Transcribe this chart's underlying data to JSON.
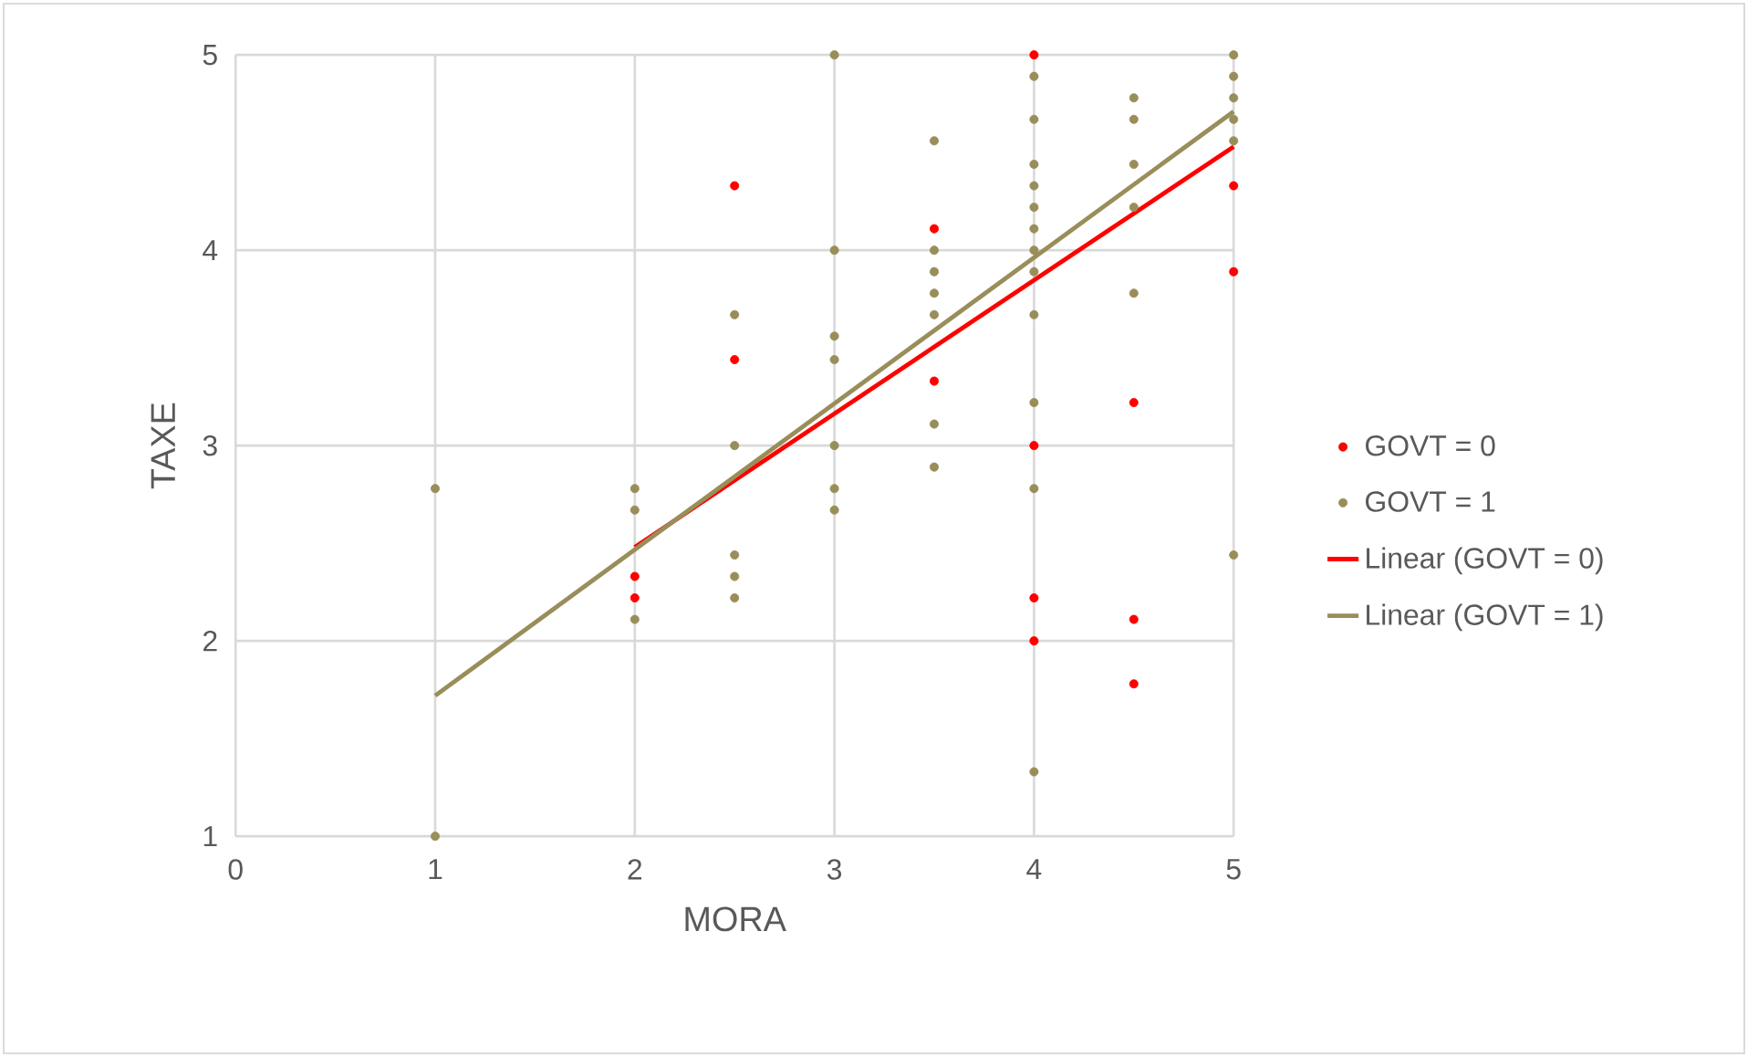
{
  "chart_data": {
    "type": "scatter",
    "xlabel": "MORA",
    "ylabel": "TAXE",
    "xlim": [
      0,
      5
    ],
    "ylim": [
      1,
      5
    ],
    "xticks": [
      0,
      1,
      2,
      3,
      4,
      5
    ],
    "yticks": [
      1,
      2,
      3,
      4,
      5
    ],
    "grid": true,
    "legend": "right",
    "series": [
      {
        "name": "GOVT = 0",
        "marker": "circle",
        "color": "#ff0000",
        "x": [
          2,
          2,
          2.5,
          2.5,
          3.5,
          3.5,
          4,
          4,
          4,
          4,
          4.5,
          4.5,
          4.5,
          5,
          5
        ],
        "values": [
          2.33,
          2.22,
          4.33,
          3.44,
          4.11,
          3.33,
          5,
          3.0,
          2.22,
          2.0,
          3.22,
          2.11,
          1.78,
          4.33,
          3.89
        ]
      },
      {
        "name": "GOVT = 1",
        "marker": "circle",
        "color": "#998e5a",
        "x": [
          1,
          1,
          2,
          2,
          2,
          2.5,
          2.5,
          2.5,
          2.5,
          2.5,
          3,
          3,
          3,
          3,
          3,
          3,
          3,
          3.5,
          3.5,
          3.5,
          3.5,
          3.5,
          3.5,
          3.5,
          4,
          4,
          4,
          4,
          4,
          4,
          4,
          4,
          4,
          4,
          4,
          4,
          4.5,
          4.5,
          4.5,
          4.5,
          4.5,
          5,
          5,
          5,
          5,
          5,
          5
        ],
        "values": [
          2.78,
          1.0,
          2.78,
          2.67,
          2.11,
          3.67,
          3.0,
          2.44,
          2.33,
          2.22,
          5,
          4.0,
          3.56,
          3.44,
          3.0,
          2.78,
          2.67,
          4.56,
          4.0,
          3.89,
          3.78,
          3.67,
          3.11,
          2.89,
          4.89,
          4.67,
          4.44,
          4.33,
          4.22,
          4.11,
          4.0,
          3.89,
          3.67,
          3.22,
          2.78,
          1.33,
          4.78,
          4.67,
          4.44,
          4.22,
          3.78,
          5,
          4.89,
          4.78,
          4.67,
          4.56,
          2.44
        ]
      },
      {
        "name": "Linear (GOVT = 0)",
        "type": "line",
        "marker": "none",
        "line_style": "solid",
        "color": "#ff0000",
        "x": [
          2,
          5
        ],
        "values": [
          2.48,
          4.53
        ]
      },
      {
        "name": "Linear (GOVT = 1)",
        "type": "line",
        "marker": "none",
        "line_style": "solid",
        "color": "#998e5a",
        "x": [
          1,
          5
        ],
        "values": [
          1.72,
          4.71
        ]
      }
    ]
  }
}
